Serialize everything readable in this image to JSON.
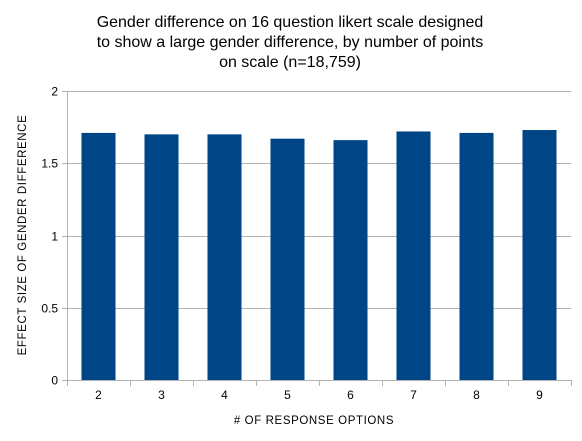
{
  "chart_data": {
    "type": "bar",
    "title_lines": [
      "Gender difference on 16 question likert scale designed",
      "to show a large gender difference, by number of points",
      "on scale (n=18,759)"
    ],
    "xlabel": "# OF RESPONSE OPTIONS",
    "ylabel": "EFFECT SIZE OF GENDER DIFFERENCE",
    "categories": [
      "2",
      "3",
      "4",
      "5",
      "6",
      "7",
      "8",
      "9"
    ],
    "values": [
      1.71,
      1.7,
      1.7,
      1.67,
      1.66,
      1.72,
      1.71,
      1.73
    ],
    "ylim": [
      0,
      2
    ],
    "yticks": [
      0,
      0.5,
      1,
      1.5,
      2
    ],
    "ytick_labels": [
      "0",
      "0.5",
      "1",
      "1.5",
      "2"
    ],
    "grid": "horizontal",
    "bar_color": "#004586",
    "grid_color": "#b3b3b3"
  }
}
